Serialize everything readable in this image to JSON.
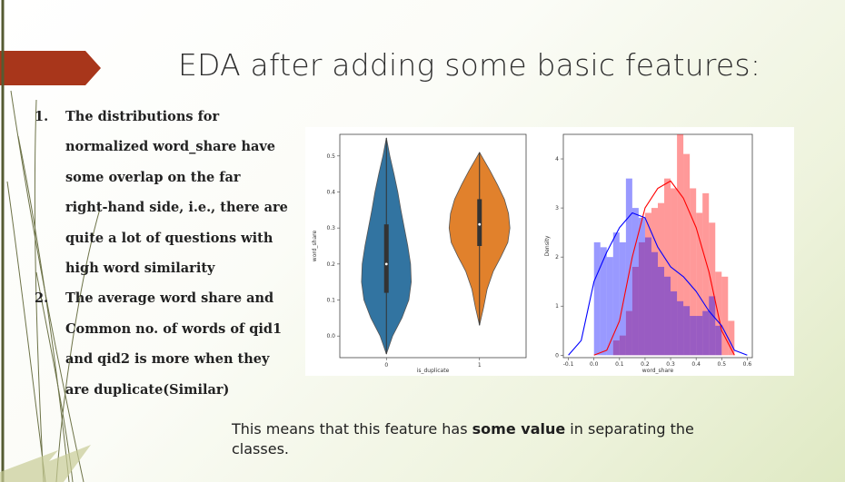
{
  "slide": {
    "title": "EDA after adding some basic features:",
    "bullets": [
      {
        "number": "1.",
        "lines": [
          "The distributions for",
          "normalized word_share have",
          "some overlap on the far",
          "right-hand side, i.e., there are",
          "quite a lot of questions with",
          "high word similarity"
        ]
      },
      {
        "number": "2.",
        "lines": [
          "The average word share and",
          "Common no. of words of qid1",
          "and qid2 is more when they",
          "are duplicate(Similar)"
        ]
      }
    ],
    "conclusion": {
      "before": "This means that this feature has ",
      "emphasis": "some value",
      "after": " in separating the classes."
    },
    "colors": {
      "accent_arrow": "#a8361b",
      "text": "#222222"
    }
  },
  "chart_data": [
    {
      "type": "violin",
      "xlabel": "is_duplicate",
      "ylabel": "word_share",
      "categories": [
        "0",
        "1"
      ],
      "yticks": [
        "0.0",
        "0.1",
        "0.2",
        "0.3",
        "0.4",
        "0.5"
      ],
      "ylim": [
        -0.06,
        0.56
      ],
      "series": [
        {
          "category": "0",
          "color": "#3274a1",
          "median": 0.2,
          "q1": 0.12,
          "q3": 0.31,
          "min": -0.05,
          "max": 0.55
        },
        {
          "category": "1",
          "color": "#e1812c",
          "median": 0.31,
          "q1": 0.25,
          "q3": 0.38,
          "min": 0.03,
          "max": 0.51
        }
      ]
    },
    {
      "type": "histogram",
      "xlabel": "word_share",
      "ylabel": "Density",
      "xticks": [
        "-0.1",
        "0.0",
        "0.1",
        "0.2",
        "0.3",
        "0.4",
        "0.5",
        "0.6"
      ],
      "yticks": [
        "0",
        "1",
        "2",
        "3",
        "4"
      ],
      "xlim": [
        -0.12,
        0.62
      ],
      "ylim": [
        -0.05,
        4.5
      ],
      "bin_width": 0.025,
      "bins_start": 0.0,
      "series": [
        {
          "color": "#ff0000",
          "values": [
            0.0,
            0.0,
            0.0,
            0.3,
            0.4,
            0.9,
            1.8,
            2.3,
            2.9,
            3.0,
            3.1,
            3.6,
            3.4,
            4.5,
            4.1,
            3.4,
            2.9,
            3.3,
            2.7,
            1.7,
            1.6,
            0.7
          ]
        },
        {
          "color": "#0000ff",
          "values": [
            2.3,
            2.2,
            2.0,
            2.5,
            2.3,
            3.6,
            3.0,
            2.8,
            2.4,
            2.1,
            1.8,
            1.6,
            1.3,
            1.1,
            1.0,
            0.8,
            0.8,
            0.9,
            1.2,
            0.6,
            0.0,
            0.0
          ]
        }
      ],
      "kde": [
        {
          "color": "#ff0000",
          "x": [
            0.0,
            0.05,
            0.1,
            0.15,
            0.2,
            0.25,
            0.3,
            0.35,
            0.4,
            0.45,
            0.5,
            0.55
          ],
          "y": [
            0.0,
            0.1,
            0.7,
            2.0,
            3.0,
            3.4,
            3.55,
            3.2,
            2.6,
            1.7,
            0.5,
            0.0
          ]
        },
        {
          "color": "#0000ff",
          "x": [
            -0.1,
            -0.05,
            0.0,
            0.05,
            0.1,
            0.15,
            0.2,
            0.25,
            0.3,
            0.35,
            0.4,
            0.45,
            0.5,
            0.55,
            0.6
          ],
          "y": [
            0.0,
            0.3,
            1.5,
            2.1,
            2.6,
            2.9,
            2.8,
            2.2,
            1.8,
            1.6,
            1.3,
            0.9,
            0.6,
            0.1,
            0.0
          ]
        }
      ]
    }
  ]
}
